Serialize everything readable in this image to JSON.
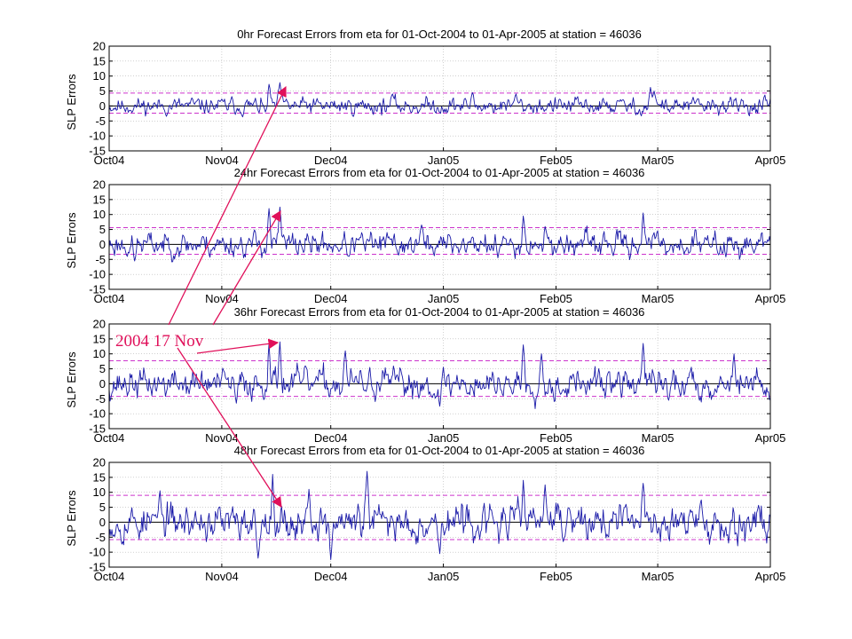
{
  "colors": {
    "series": "#1a1aa8",
    "threshold": "#cc33cc",
    "zero_line": "#000000",
    "grid": "#b4b4b4",
    "annotation": "#e0105a"
  },
  "annotation": {
    "text": "2004 17 Nov"
  },
  "chart_data": [
    {
      "type": "line",
      "title": "0hr Forecast Errors from eta for 01-Oct-2004 to 01-Apr-2005 at station = 46036",
      "ylabel": "SLP Errors",
      "xlabel": "",
      "x_ticks": [
        "Oct04",
        "Nov04",
        "Dec04",
        "Jan05",
        "Feb05",
        "Mar05",
        "Apr05"
      ],
      "y_ticks": [
        "20",
        "15",
        "10",
        "5",
        "0",
        "-5",
        "-10",
        "-15"
      ],
      "ylim": [
        -15,
        20
      ],
      "xlim_days": [
        0,
        182
      ],
      "grid": true,
      "threshold_levels": [
        4.3,
        -2.4
      ],
      "seed": 11,
      "base_amplitude": 1.8,
      "spikes": [
        [
          44,
          7.3
        ],
        [
          47,
          7.8
        ],
        [
          43,
          -2.0
        ],
        [
          145,
          -3.0
        ],
        [
          149,
          6.2
        ],
        [
          150,
          5.0
        ],
        [
          112,
          4.0
        ],
        [
          100,
          4.5
        ],
        [
          78,
          4.0
        ]
      ]
    },
    {
      "type": "line",
      "title": "24hr Forecast Errors from eta for 01-Oct-2004 to 01-Apr-2005 at station = 46036",
      "ylabel": "SLP Errors",
      "xlabel": "",
      "x_ticks": [
        "Oct04",
        "Nov04",
        "Dec04",
        "Jan05",
        "Feb05",
        "Mar05",
        "Apr05"
      ],
      "y_ticks": [
        "20",
        "15",
        "10",
        "5",
        "0",
        "-5",
        "-10",
        "-15"
      ],
      "ylim": [
        -15,
        20
      ],
      "xlim_days": [
        0,
        182
      ],
      "grid": true,
      "threshold_levels": [
        5.6,
        -3.3
      ],
      "seed": 23,
      "base_amplitude": 2.6,
      "spikes": [
        [
          44,
          12.0
        ],
        [
          47,
          12.5
        ],
        [
          7,
          -5.5
        ],
        [
          147,
          10.5
        ],
        [
          114,
          9.5
        ],
        [
          86,
          6.5
        ],
        [
          107,
          -4.5
        ],
        [
          66,
          -4.0
        ],
        [
          120,
          6.0
        ]
      ]
    },
    {
      "type": "line",
      "title": "36hr Forecast Errors from eta for 01-Oct-2004 to 01-Apr-2005 at station = 46036",
      "ylabel": "SLP Errors",
      "xlabel": "",
      "x_ticks": [
        "Oct04",
        "Nov04",
        "Dec04",
        "Jan05",
        "Feb05",
        "Mar05",
        "Apr05"
      ],
      "y_ticks": [
        "20",
        "15",
        "10",
        "5",
        "0",
        "-5",
        "-10",
        "-15"
      ],
      "ylim": [
        -15,
        20
      ],
      "xlim_days": [
        0,
        182
      ],
      "grid": true,
      "threshold_levels": [
        7.7,
        -4.2
      ],
      "seed": 37,
      "base_amplitude": 3.2,
      "spikes": [
        [
          44,
          13.5
        ],
        [
          47,
          14.0
        ],
        [
          35,
          -6.5
        ],
        [
          114,
          13.0
        ],
        [
          119,
          10.0
        ],
        [
          147,
          13.5
        ],
        [
          91,
          -7.5
        ],
        [
          65,
          11.0
        ],
        [
          172,
          10.0
        ],
        [
          154,
          -5.5
        ]
      ]
    },
    {
      "type": "line",
      "title": "48hr Forecast Errors from eta for 01-Oct-2004 to 01-Apr-2005 at station = 46036",
      "ylabel": "SLP Errors",
      "xlabel": "",
      "x_ticks": [
        "Oct04",
        "Nov04",
        "Dec04",
        "Jan05",
        "Feb05",
        "Mar05",
        "Apr05"
      ],
      "y_ticks": [
        "20",
        "15",
        "10",
        "5",
        "0",
        "-5",
        "-10",
        "-15"
      ],
      "ylim": [
        -15,
        20
      ],
      "xlim_days": [
        0,
        182
      ],
      "grid": true,
      "threshold_levels": [
        9.0,
        -5.8
      ],
      "seed": 53,
      "base_amplitude": 3.8,
      "spikes": [
        [
          45,
          16.0
        ],
        [
          41,
          -12.0
        ],
        [
          61,
          -12.5
        ],
        [
          71,
          17.0
        ],
        [
          14,
          10.5
        ],
        [
          114,
          14.0
        ],
        [
          120,
          12.5
        ],
        [
          147,
          13.0
        ],
        [
          91,
          -10.5
        ],
        [
          36,
          -6.0
        ],
        [
          55,
          11.0
        ]
      ]
    }
  ]
}
